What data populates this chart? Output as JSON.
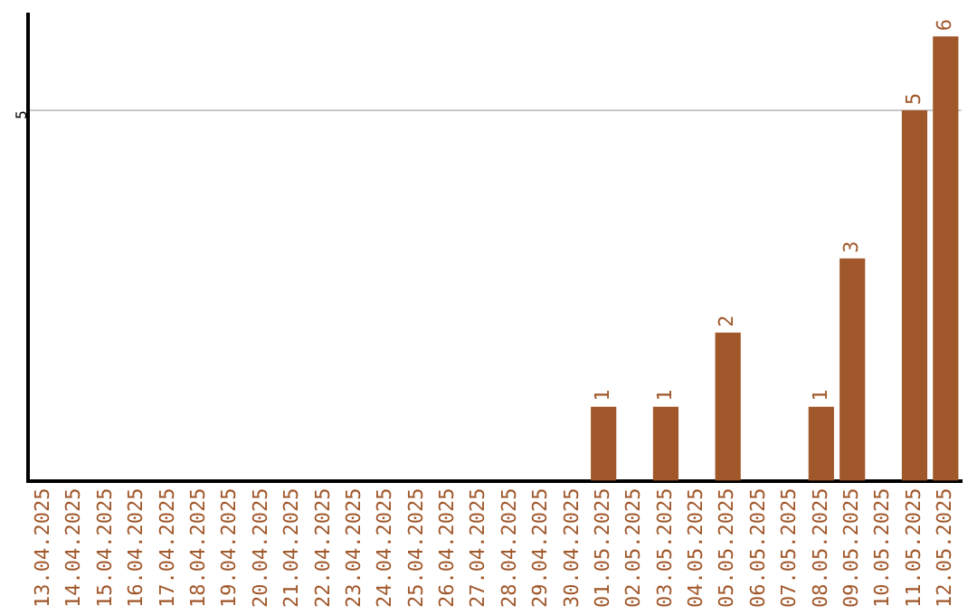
{
  "chart_data": {
    "type": "bar",
    "categories": [
      "13.04.2025",
      "14.04.2025",
      "15.04.2025",
      "16.04.2025",
      "17.04.2025",
      "18.04.2025",
      "19.04.2025",
      "20.04.2025",
      "21.04.2025",
      "22.04.2025",
      "23.04.2025",
      "24.04.2025",
      "25.04.2025",
      "26.04.2025",
      "27.04.2025",
      "28.04.2025",
      "29.04.2025",
      "30.04.2025",
      "01.05.2025",
      "02.05.2025",
      "03.05.2025",
      "04.05.2025",
      "05.05.2025",
      "06.05.2025",
      "07.05.2025",
      "08.05.2025",
      "09.05.2025",
      "10.05.2025",
      "11.05.2025",
      "12.05.2025"
    ],
    "values": [
      null,
      null,
      null,
      null,
      null,
      null,
      null,
      null,
      null,
      null,
      null,
      null,
      null,
      null,
      null,
      null,
      null,
      null,
      1,
      null,
      1,
      null,
      2,
      null,
      null,
      1,
      3,
      null,
      5,
      6
    ],
    "data_labels": true,
    "color": "#a0572a",
    "ylim": [
      0,
      6.3
    ],
    "yticks": [
      5
    ],
    "grid": "y",
    "legend": false
  }
}
